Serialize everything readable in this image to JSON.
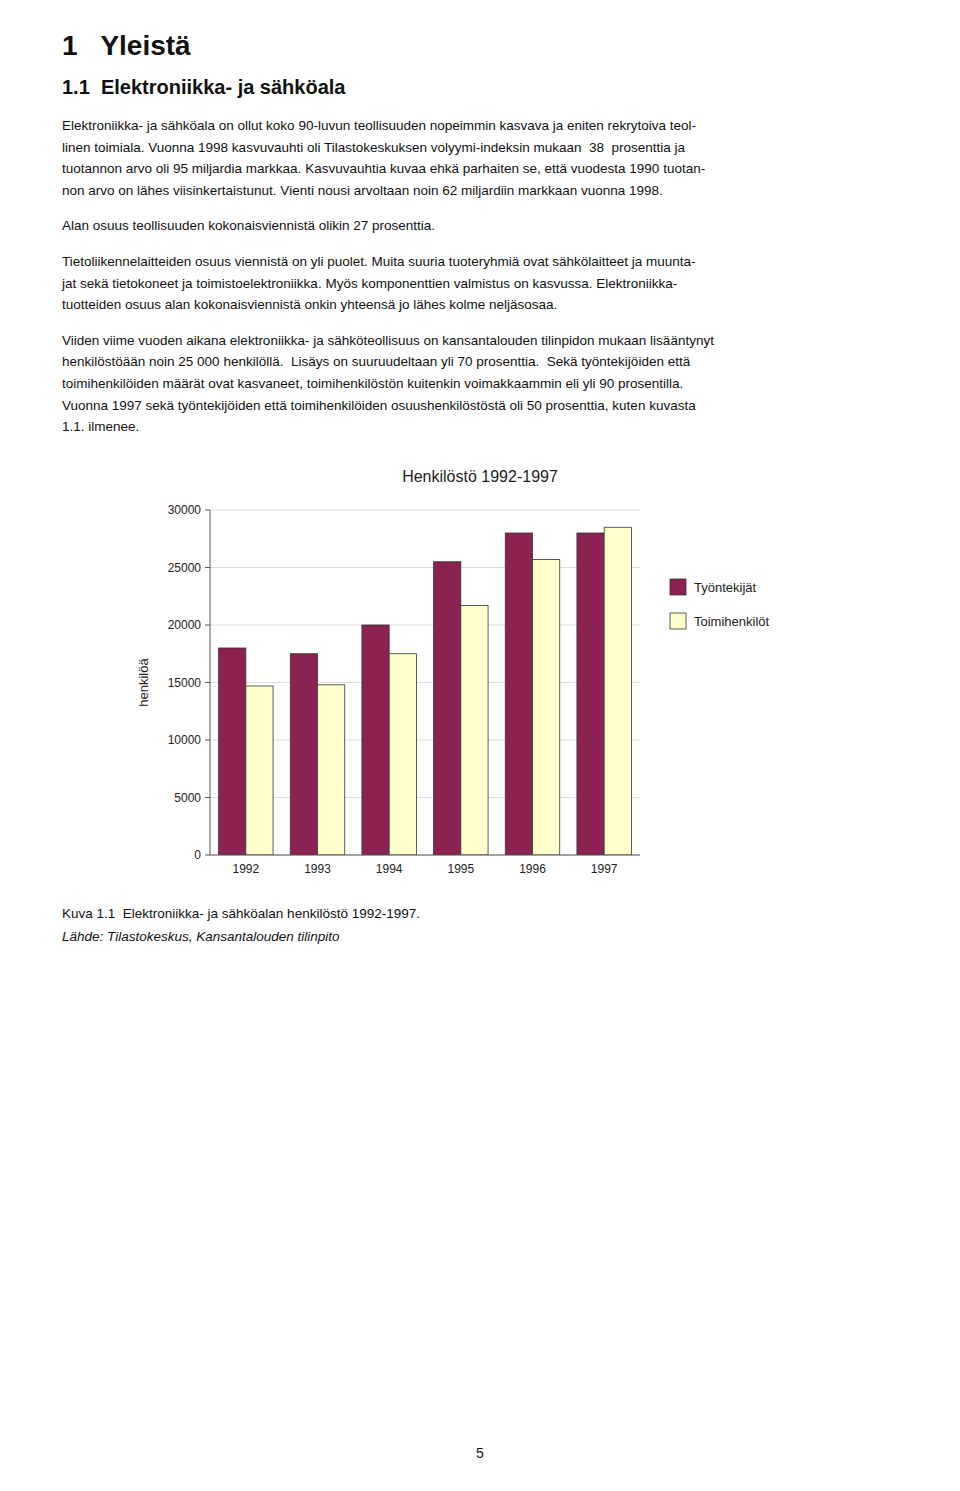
{
  "heading": "1   Yleistä",
  "subheading": "1.1  Elektroniikka- ja sähköala",
  "paragraphs": [
    [
      "Elektroniikka- ja sähköala on ollut koko 90-luvun teollisuuden nopeimmin kasvava ja eniten rekrytoiva teol-",
      "linen toimiala. Vuonna 1998 kasvuvauhti oli Tilastokeskuksen volyymi-indeksin mukaan  38  prosenttia ja",
      "tuotannon arvo oli 95 miljardia markkaa. Kasvuvauhtia kuvaa ehkä parhaiten se, että vuodesta 1990 tuotan-",
      "non arvo on lähes viisinkertaistunut. Vienti nousi arvoltaan noin 62 miljardiin markkaan vuonna 1998."
    ],
    [
      "Alan osuus teollisuuden kokonaisviennistä olikin 27 prosenttia."
    ],
    [
      "Tietoliikennelaitteiden osuus viennistä on yli puolet. Muita suuria tuoteryhmiä ovat sähkölaitteet ja muunta-",
      "jat sekä tietokoneet ja toimistoelektroniikka. Myös komponenttien valmistus on kasvussa. Elektroniikka-",
      "tuotteiden osuus alan kokonaisviennistä onkin yhteensä jo lähes kolme neljäsosaa."
    ],
    [
      "Viiden viime vuoden aikana elektroniikka- ja sähköteollisuus on kansantalouden tilinpidon mukaan lisääntynyt",
      "henkilöstöään noin 25 000 henkilöllä.  Lisäys on suuruudeltaan yli 70 prosenttia.  Sekä työntekijöiden että",
      "toimihenkilöiden määrät ovat kasvaneet, toimihenkilöstön kuitenkin voimakkaammin eli yli 90 prosentilla.",
      "Vuonna 1997 sekä työntekijöiden että toimihenkilöiden osuushenkilöstöstä oli 50 prosenttia, kuten kuvasta",
      "1.1. ilmenee."
    ]
  ],
  "caption": "Kuva 1.1  Elektroniikka- ja sähköalan henkilöstö 1992-1997.",
  "source": "Lähde: Tilastokeskus, Kansantalouden tilinpito",
  "page_number": "5",
  "chart_data": {
    "type": "bar",
    "title": "Henkilöstö 1992-1997",
    "y_label": "henkilöä",
    "categories": [
      "1992",
      "1993",
      "1994",
      "1995",
      "1996",
      "1997"
    ],
    "series": [
      {
        "name": "Työntekijät",
        "color": "#8B2252",
        "values": [
          18000,
          17500,
          20000,
          25500,
          28000,
          28000
        ]
      },
      {
        "name": "Toimihenkilöt",
        "color": "#FFFFCC",
        "values": [
          14700,
          14800,
          17500,
          21700,
          25700,
          28500
        ]
      }
    ],
    "ylim": [
      0,
      30000
    ],
    "yticks": [
      0,
      5000,
      10000,
      15000,
      20000,
      25000,
      30000
    ],
    "grid": true,
    "legend": "right"
  }
}
